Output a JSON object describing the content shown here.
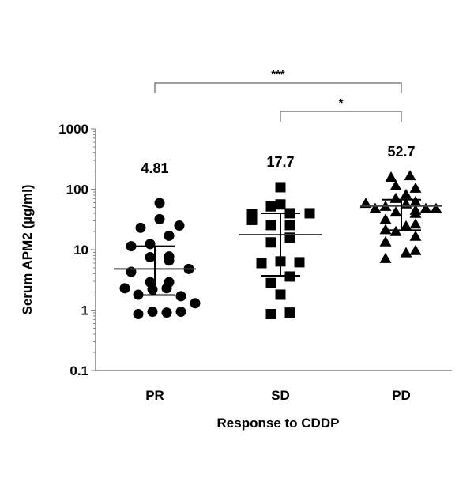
{
  "chart_data": {
    "type": "scatter",
    "ylabel": "Serum APM2 (µg/ml)",
    "xlabel": "Response to CDDP",
    "yscale": "log",
    "ylim": [
      0.1,
      1000
    ],
    "yticks": [
      "0.1",
      "1",
      "10",
      "100",
      "1000"
    ],
    "grid": false,
    "categories": [
      "PR",
      "SD",
      "PD"
    ],
    "series": [
      {
        "category": "PR",
        "marker": "circle",
        "median_label": "4.81",
        "median": 4.81,
        "iqr": [
          1.77,
          11.4
        ],
        "values": [
          59,
          32,
          23,
          25,
          17,
          11.4,
          12.4,
          7.7,
          7.5,
          6.6,
          4.3,
          4.8,
          2.9,
          2.9,
          2.3,
          2.2,
          2.3,
          1.8,
          1.7,
          1.3,
          0.86,
          0.94,
          0.91,
          0.94
        ]
      },
      {
        "category": "SD",
        "marker": "square",
        "median_label": "17.7",
        "median": 17.7,
        "iqr": [
          3.7,
          40
        ],
        "values": [
          108,
          52,
          56,
          39,
          31,
          40,
          40,
          25.5,
          25.5,
          13.2,
          15.8,
          6.0,
          6.4,
          6.2,
          3.6,
          2.8,
          1.8,
          0.86,
          0.91
        ]
      },
      {
        "category": "PD",
        "marker": "triangle",
        "median_label": "52.7",
        "median": 52.7,
        "iqr": [
          21,
          67
        ],
        "values": [
          155,
          164,
          111,
          102,
          80,
          69,
          57,
          56,
          61,
          47,
          51,
          44,
          47,
          47,
          41,
          31,
          39,
          24,
          26,
          21,
          19.5,
          16.3,
          13.2,
          8.7,
          9.5,
          7.0
        ]
      }
    ],
    "annotations": [
      {
        "from": "PR",
        "to": "PD",
        "label": "***"
      },
      {
        "from": "SD",
        "to": "PD",
        "label": "*"
      }
    ],
    "colors": {
      "markers": "#000000",
      "axis": "#808080",
      "lines": "#000000"
    }
  }
}
